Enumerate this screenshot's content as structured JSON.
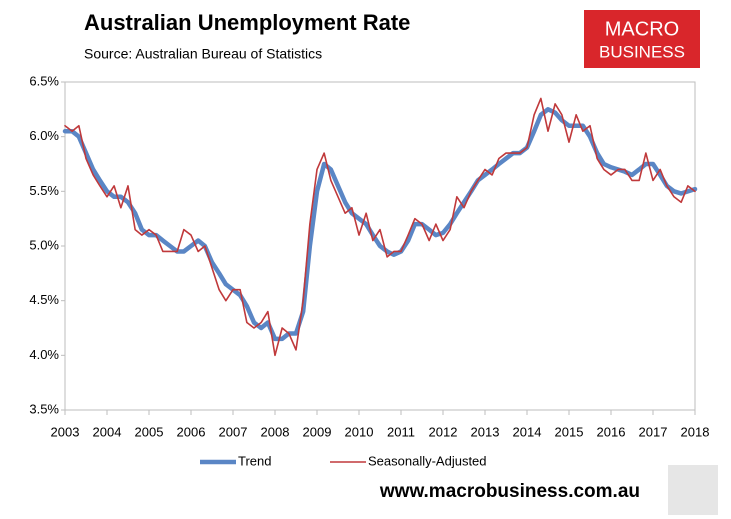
{
  "chart_data": {
    "type": "line",
    "title": "Australian Unemployment Rate",
    "subtitle": "Source: Australian Bureau of Statistics",
    "logo": [
      "MACRO",
      "BUSINESS"
    ],
    "footer": "www.macrobusiness.com.au",
    "xlim": [
      2003,
      2018
    ],
    "xticks": [
      2003,
      2004,
      2005,
      2006,
      2007,
      2008,
      2009,
      2010,
      2011,
      2012,
      2013,
      2014,
      2015,
      2016,
      2017,
      2018
    ],
    "ylim": [
      3.5,
      6.5
    ],
    "yticks": [
      {
        "value": 3.5,
        "label": "3.5%"
      },
      {
        "value": 4.0,
        "label": "4.0%"
      },
      {
        "value": 4.5,
        "label": "4.5%"
      },
      {
        "value": 5.0,
        "label": "5.0%"
      },
      {
        "value": 5.5,
        "label": "5.5%"
      },
      {
        "value": 6.0,
        "label": "6.0%"
      },
      {
        "value": 6.5,
        "label": "6.5%"
      }
    ],
    "grid": false,
    "x": [
      2003,
      2003.17,
      2003.33,
      2003.5,
      2003.67,
      2003.83,
      2004,
      2004.17,
      2004.33,
      2004.5,
      2004.67,
      2004.83,
      2005,
      2005.17,
      2005.33,
      2005.5,
      2005.67,
      2005.83,
      2006,
      2006.17,
      2006.33,
      2006.5,
      2006.67,
      2006.83,
      2007,
      2007.17,
      2007.33,
      2007.5,
      2007.67,
      2007.83,
      2008,
      2008.17,
      2008.33,
      2008.5,
      2008.67,
      2008.83,
      2009,
      2009.17,
      2009.33,
      2009.5,
      2009.67,
      2009.83,
      2010,
      2010.17,
      2010.33,
      2010.5,
      2010.67,
      2010.83,
      2011,
      2011.17,
      2011.33,
      2011.5,
      2011.67,
      2011.83,
      2012,
      2012.17,
      2012.33,
      2012.5,
      2012.67,
      2012.83,
      2013,
      2013.17,
      2013.33,
      2013.5,
      2013.67,
      2013.83,
      2014,
      2014.17,
      2014.33,
      2014.5,
      2014.67,
      2014.83,
      2015,
      2015.17,
      2015.33,
      2015.5,
      2015.67,
      2015.83,
      2016,
      2016.17,
      2016.33,
      2016.5,
      2016.67,
      2016.83,
      2017,
      2017.17,
      2017.33,
      2017.5,
      2017.67,
      2017.83,
      2018
    ],
    "series": [
      {
        "name": "Trend",
        "color": "#5a86c5",
        "values": [
          6.05,
          6.05,
          6.0,
          5.85,
          5.7,
          5.6,
          5.5,
          5.45,
          5.45,
          5.4,
          5.3,
          5.15,
          5.1,
          5.1,
          5.05,
          5.0,
          4.95,
          4.95,
          5.0,
          5.05,
          5.0,
          4.85,
          4.75,
          4.65,
          4.6,
          4.55,
          4.45,
          4.3,
          4.25,
          4.3,
          4.15,
          4.15,
          4.2,
          4.2,
          4.4,
          5.0,
          5.5,
          5.75,
          5.7,
          5.55,
          5.4,
          5.3,
          5.25,
          5.2,
          5.1,
          5.0,
          4.95,
          4.92,
          4.95,
          5.05,
          5.2,
          5.2,
          5.15,
          5.1,
          5.12,
          5.2,
          5.3,
          5.4,
          5.5,
          5.6,
          5.65,
          5.7,
          5.75,
          5.8,
          5.85,
          5.85,
          5.9,
          6.05,
          6.2,
          6.25,
          6.22,
          6.15,
          6.1,
          6.1,
          6.1,
          6.0,
          5.85,
          5.75,
          5.72,
          5.7,
          5.68,
          5.65,
          5.7,
          5.75,
          5.75,
          5.65,
          5.55,
          5.5,
          5.48,
          5.5,
          5.52
        ]
      },
      {
        "name": "Seasonally-Adjusted",
        "color": "#c0393b",
        "values": [
          6.1,
          6.05,
          6.1,
          5.8,
          5.65,
          5.55,
          5.45,
          5.55,
          5.35,
          5.55,
          5.15,
          5.1,
          5.15,
          5.1,
          4.95,
          4.95,
          4.95,
          5.15,
          5.1,
          4.95,
          5.0,
          4.8,
          4.6,
          4.5,
          4.6,
          4.6,
          4.3,
          4.25,
          4.3,
          4.4,
          4.0,
          4.25,
          4.2,
          4.05,
          4.5,
          5.2,
          5.7,
          5.85,
          5.6,
          5.45,
          5.3,
          5.35,
          5.1,
          5.3,
          5.05,
          5.15,
          4.9,
          4.95,
          4.95,
          5.1,
          5.25,
          5.2,
          5.05,
          5.2,
          5.05,
          5.15,
          5.45,
          5.35,
          5.5,
          5.6,
          5.7,
          5.65,
          5.8,
          5.85,
          5.85,
          5.85,
          5.9,
          6.2,
          6.35,
          6.05,
          6.3,
          6.2,
          5.95,
          6.2,
          6.05,
          6.1,
          5.8,
          5.7,
          5.65,
          5.7,
          5.7,
          5.6,
          5.6,
          5.85,
          5.6,
          5.7,
          5.55,
          5.45,
          5.4,
          5.55,
          5.5
        ]
      }
    ]
  }
}
